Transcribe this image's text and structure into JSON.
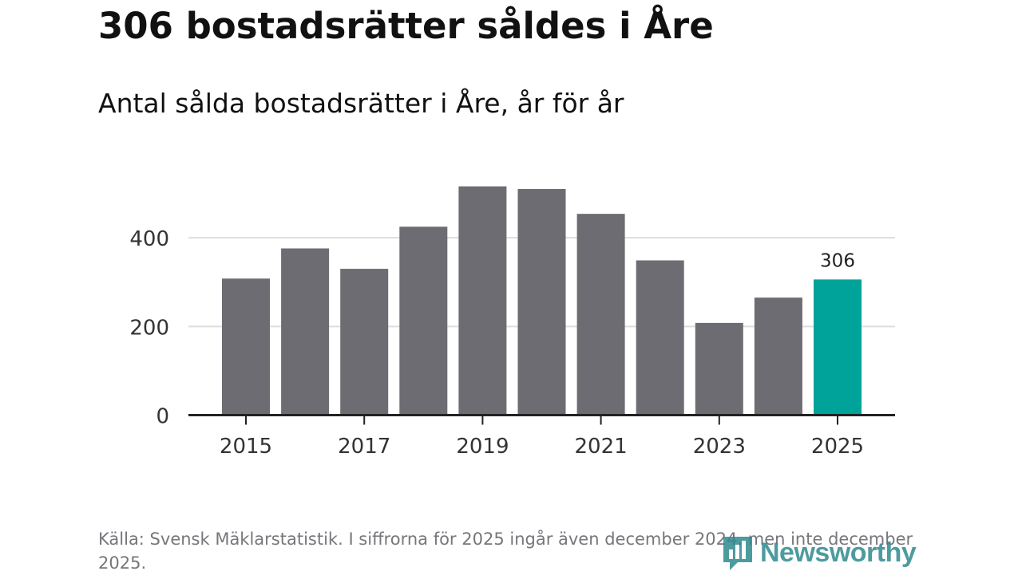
{
  "title": "306 bostadsrätter såldes i Åre",
  "subtitle": "Antal sålda bostadsrätter i Åre, år för år",
  "source": "Källa: Svensk Mäklarstatistik. I siffrorna för 2025 ingår även december 2024, men inte december 2025.",
  "logo": {
    "text": "Newsworthy",
    "icon": "bar-chart-logo-icon"
  },
  "colors": {
    "bar": "#6d6c72",
    "highlight": "#00a39a",
    "grid": "#dddddd",
    "axis": "#222222"
  },
  "chart_data": {
    "type": "bar",
    "title": "Antal sålda bostadsrätter i Åre, år för år",
    "categories": [
      "2015",
      "2016",
      "2017",
      "2018",
      "2019",
      "2020",
      "2021",
      "2022",
      "2023",
      "2024",
      "2025"
    ],
    "values": [
      308,
      376,
      330,
      425,
      516,
      510,
      454,
      349,
      208,
      265,
      306
    ],
    "highlight_index": 10,
    "data_labels": [
      {
        "category": "2025",
        "text": "306"
      }
    ],
    "xticks": [
      "2015",
      "2017",
      "2019",
      "2021",
      "2023",
      "2025"
    ],
    "yticks": [
      0,
      200,
      400
    ],
    "ylim": [
      0,
      560
    ],
    "xlabel": "",
    "ylabel": "",
    "grid": true
  }
}
